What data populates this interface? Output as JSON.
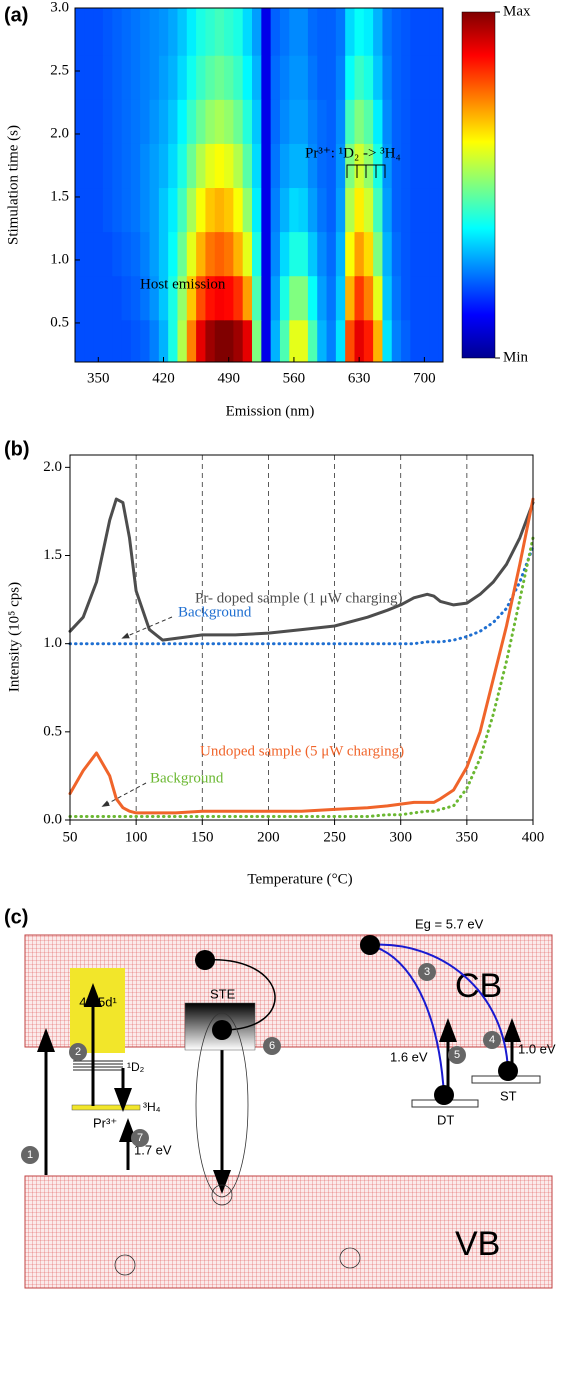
{
  "chart_data": [
    {
      "type": "heatmap",
      "panel_label": "(a)",
      "xlabel": "Emission (nm)",
      "ylabel": "Stimulation time (s)",
      "annotations": [
        "Host emission",
        "Pr³⁺: ¹D₂ -> ³H₄"
      ],
      "colormap": "jet",
      "zlim": [
        0,
        1
      ],
      "zticks": [
        {
          "value": 1,
          "label": "Max"
        },
        {
          "value": 0,
          "label": "Min"
        }
      ],
      "xlim": [
        325,
        720
      ],
      "ylim": [
        0.19,
        3.0
      ],
      "xticks": [
        350,
        420,
        490,
        560,
        630,
        700
      ],
      "yticks": [
        0.5,
        {
          "value": 1,
          "label": "1.0"
        },
        1.5,
        {
          "value": 2,
          "label": "2.0"
        },
        2.5,
        {
          "value": 3,
          "label": "3.0"
        }
      ],
      "x": [
        330,
        340,
        350,
        360,
        370,
        380,
        390,
        400,
        410,
        420,
        430,
        440,
        450,
        460,
        470,
        480,
        490,
        500,
        510,
        520,
        530,
        540,
        550,
        560,
        570,
        580,
        590,
        600,
        610,
        620,
        630,
        640,
        650,
        660,
        670,
        680,
        690,
        700,
        710,
        720
      ],
      "y": [
        0.35,
        0.7,
        1.05,
        1.4,
        1.75,
        2.1,
        2.45,
        2.8
      ],
      "z": [
        [
          0.2,
          0.2,
          0.2,
          0.2,
          0.2,
          0.2,
          0.21,
          0.22,
          0.25,
          0.3,
          0.4,
          0.55,
          0.75,
          0.9,
          0.97,
          1,
          1,
          0.97,
          0.9,
          0.5,
          0.1,
          0.3,
          0.45,
          0.6,
          0.6,
          0.45,
          0.3,
          0.25,
          0.35,
          0.8,
          0.9,
          0.85,
          0.7,
          0.35,
          0.25,
          0.22,
          0.2,
          0.2,
          0.2,
          0.2
        ],
        [
          0.2,
          0.2,
          0.2,
          0.2,
          0.2,
          0.21,
          0.22,
          0.24,
          0.27,
          0.32,
          0.4,
          0.52,
          0.68,
          0.8,
          0.86,
          0.88,
          0.87,
          0.83,
          0.72,
          0.45,
          0.1,
          0.28,
          0.4,
          0.5,
          0.5,
          0.38,
          0.28,
          0.24,
          0.32,
          0.7,
          0.82,
          0.75,
          0.6,
          0.32,
          0.24,
          0.21,
          0.2,
          0.2,
          0.2,
          0.2
        ],
        [
          0.2,
          0.2,
          0.2,
          0.2,
          0.21,
          0.22,
          0.23,
          0.25,
          0.28,
          0.32,
          0.38,
          0.48,
          0.6,
          0.7,
          0.76,
          0.78,
          0.76,
          0.7,
          0.6,
          0.4,
          0.1,
          0.26,
          0.34,
          0.4,
          0.4,
          0.32,
          0.26,
          0.23,
          0.3,
          0.62,
          0.72,
          0.66,
          0.5,
          0.3,
          0.23,
          0.21,
          0.2,
          0.2,
          0.2,
          0.2
        ],
        [
          0.2,
          0.2,
          0.2,
          0.21,
          0.22,
          0.23,
          0.24,
          0.26,
          0.28,
          0.32,
          0.36,
          0.44,
          0.54,
          0.62,
          0.68,
          0.7,
          0.68,
          0.62,
          0.52,
          0.36,
          0.1,
          0.25,
          0.3,
          0.34,
          0.33,
          0.28,
          0.24,
          0.22,
          0.28,
          0.55,
          0.64,
          0.58,
          0.44,
          0.28,
          0.22,
          0.21,
          0.2,
          0.2,
          0.2,
          0.2
        ],
        [
          0.2,
          0.2,
          0.2,
          0.21,
          0.22,
          0.23,
          0.24,
          0.26,
          0.28,
          0.3,
          0.34,
          0.4,
          0.48,
          0.55,
          0.6,
          0.62,
          0.6,
          0.55,
          0.46,
          0.34,
          0.1,
          0.24,
          0.28,
          0.3,
          0.3,
          0.26,
          0.23,
          0.22,
          0.27,
          0.5,
          0.58,
          0.52,
          0.4,
          0.27,
          0.22,
          0.21,
          0.2,
          0.2,
          0.2,
          0.2
        ],
        [
          0.2,
          0.2,
          0.2,
          0.21,
          0.22,
          0.23,
          0.24,
          0.25,
          0.27,
          0.29,
          0.32,
          0.37,
          0.43,
          0.48,
          0.52,
          0.54,
          0.52,
          0.48,
          0.41,
          0.32,
          0.1,
          0.23,
          0.26,
          0.28,
          0.28,
          0.25,
          0.23,
          0.22,
          0.26,
          0.44,
          0.5,
          0.46,
          0.36,
          0.26,
          0.22,
          0.21,
          0.2,
          0.2,
          0.2,
          0.2
        ],
        [
          0.2,
          0.2,
          0.2,
          0.21,
          0.22,
          0.23,
          0.24,
          0.25,
          0.26,
          0.28,
          0.3,
          0.34,
          0.39,
          0.43,
          0.46,
          0.48,
          0.46,
          0.43,
          0.37,
          0.3,
          0.1,
          0.23,
          0.25,
          0.27,
          0.27,
          0.24,
          0.22,
          0.22,
          0.25,
          0.38,
          0.43,
          0.4,
          0.32,
          0.25,
          0.22,
          0.21,
          0.2,
          0.2,
          0.2,
          0.2
        ],
        [
          0.2,
          0.2,
          0.2,
          0.21,
          0.22,
          0.23,
          0.24,
          0.25,
          0.26,
          0.27,
          0.29,
          0.32,
          0.36,
          0.4,
          0.42,
          0.44,
          0.42,
          0.4,
          0.34,
          0.28,
          0.1,
          0.22,
          0.24,
          0.26,
          0.26,
          0.23,
          0.22,
          0.22,
          0.24,
          0.34,
          0.38,
          0.36,
          0.3,
          0.24,
          0.22,
          0.21,
          0.2,
          0.2,
          0.2,
          0.2
        ]
      ]
    },
    {
      "type": "line",
      "panel_label": "(b)",
      "xlabel": "Temperature (°C)",
      "ylabel": "Intensity (10⁵ cps)",
      "xlim": [
        50,
        400
      ],
      "ylim": [
        0,
        2.07
      ],
      "grid": "x-dashed",
      "xticks": [
        50,
        100,
        150,
        200,
        250,
        300,
        350,
        400
      ],
      "yticks": [
        {
          "value": 0,
          "label": "0.0"
        },
        0.5,
        {
          "value": 1,
          "label": "1.0"
        },
        1.5,
        {
          "value": 2,
          "label": "2.0"
        }
      ],
      "x": [
        50,
        60,
        70,
        80,
        85,
        90,
        95,
        100,
        110,
        120,
        130,
        150,
        175,
        200,
        225,
        250,
        275,
        290,
        300,
        310,
        320,
        325,
        330,
        340,
        350,
        360,
        370,
        380,
        390,
        400
      ],
      "series": [
        {
          "name": "Pr- doped sample (1 μW charging)",
          "color": "#4d4d4d",
          "style": "solid",
          "values": [
            1.07,
            1.15,
            1.35,
            1.7,
            1.82,
            1.8,
            1.6,
            1.3,
            1.08,
            1.02,
            1.03,
            1.05,
            1.05,
            1.06,
            1.08,
            1.1,
            1.15,
            1.19,
            1.22,
            1.26,
            1.28,
            1.27,
            1.24,
            1.22,
            1.23,
            1.28,
            1.35,
            1.45,
            1.6,
            1.8
          ]
        },
        {
          "name": "Background",
          "color": "#1f6fd1",
          "style": "dotted",
          "values": [
            1,
            1,
            1,
            1,
            1,
            1,
            1,
            1,
            1,
            1,
            1,
            1,
            1,
            1,
            1,
            1,
            1,
            1,
            1,
            1,
            1.01,
            1.01,
            1.01,
            1.02,
            1.04,
            1.07,
            1.12,
            1.2,
            1.35,
            1.55
          ]
        },
        {
          "name": "Undoped sample (5 μW charging)",
          "color": "#f0642a",
          "style": "solid",
          "values": [
            0.15,
            0.28,
            0.38,
            0.25,
            0.12,
            0.07,
            0.05,
            0.04,
            0.04,
            0.04,
            0.04,
            0.05,
            0.05,
            0.05,
            0.05,
            0.06,
            0.07,
            0.08,
            0.09,
            0.1,
            0.1,
            0.1,
            0.12,
            0.17,
            0.3,
            0.5,
            0.8,
            1.1,
            1.45,
            1.82
          ]
        },
        {
          "name": "Background",
          "color": "#6bb832",
          "style": "dotted",
          "values": [
            0.02,
            0.02,
            0.02,
            0.02,
            0.02,
            0.02,
            0.02,
            0.02,
            0.02,
            0.02,
            0.02,
            0.02,
            0.02,
            0.02,
            0.02,
            0.02,
            0.02,
            0.03,
            0.03,
            0.04,
            0.05,
            0.05,
            0.06,
            0.08,
            0.18,
            0.35,
            0.6,
            0.9,
            1.25,
            1.6
          ]
        }
      ]
    }
  ],
  "diagram": {
    "panel_label": "(c)",
    "gap": "Eg = 5.7 eV",
    "cb": "CB",
    "vb": "VB",
    "excited": "4f¹ 5d¹",
    "d2": "¹D₂",
    "h4": "³H₄",
    "ion": "Pr³⁺",
    "e17": "1.7 eV",
    "ste": "STE",
    "e16": "1.6 eV",
    "dt": "DT",
    "st": "ST",
    "e10": "1.0 eV",
    "steps": [
      "1",
      "2",
      "3",
      "4",
      "5",
      "6",
      "7"
    ]
  }
}
